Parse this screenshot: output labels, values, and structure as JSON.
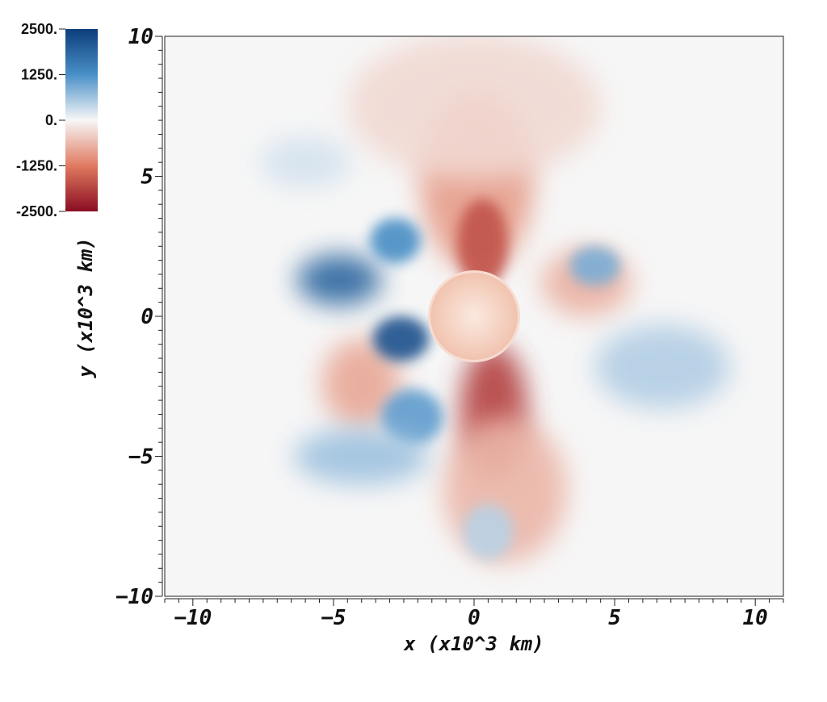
{
  "chart_data": {
    "type": "heatmap",
    "xlabel": "x (x10^3 km)",
    "ylabel": "y (x10^3 km)",
    "xlim": [
      -11,
      11
    ],
    "ylim": [
      -10,
      10
    ],
    "x_ticks": [
      -10,
      -5,
      0,
      5,
      10
    ],
    "x_tick_labels": [
      "−10",
      "−5",
      "0",
      "5",
      "10"
    ],
    "y_ticks": [
      10,
      5,
      0,
      -5,
      -10
    ],
    "y_tick_labels": [
      "10",
      "5",
      "0",
      "−5",
      "−10"
    ],
    "colorbar": {
      "range": [
        -2500,
        2500
      ],
      "ticks": [
        2500,
        1250,
        0,
        -1250,
        -2500
      ],
      "tick_labels": [
        "2500.",
        "1250.",
        "0.",
        "-1250.",
        "-2500."
      ],
      "colors": {
        "max": "#0b3d7a",
        "high": "#4a90c8",
        "mid": "#f7f7f7",
        "low": "#e07a60",
        "min": "#8a0d22"
      }
    },
    "central_object": {
      "x": 0,
      "y": 0,
      "radius": 1.6,
      "color": "#f4cfc0"
    },
    "features": [
      {
        "kind": "blob",
        "sign": "negative",
        "x": 0.1,
        "y": 4.8,
        "rx": 2.0,
        "ry": 3.2,
        "value": -900
      },
      {
        "kind": "blob",
        "sign": "negative",
        "x": 0.3,
        "y": 2.6,
        "rx": 0.9,
        "ry": 1.6,
        "value": -1700
      },
      {
        "kind": "blob",
        "sign": "negative",
        "x": 0.7,
        "y": -3.4,
        "rx": 1.2,
        "ry": 2.4,
        "value": -1900
      },
      {
        "kind": "blob",
        "sign": "negative",
        "x": 1.1,
        "y": -6.2,
        "rx": 2.2,
        "ry": 2.6,
        "value": -650
      },
      {
        "kind": "blob",
        "sign": "negative",
        "x": -4.0,
        "y": -2.4,
        "rx": 1.4,
        "ry": 1.6,
        "value": -800
      },
      {
        "kind": "blob",
        "sign": "negative",
        "x": 4.0,
        "y": 1.2,
        "rx": 1.6,
        "ry": 1.2,
        "value": -700
      },
      {
        "kind": "blob",
        "sign": "negative",
        "x": 0.0,
        "y": 7.5,
        "rx": 4.5,
        "ry": 2.6,
        "value": -300
      },
      {
        "kind": "blob",
        "sign": "positive",
        "x": -4.8,
        "y": 1.3,
        "rx": 1.5,
        "ry": 0.9,
        "value": 1900
      },
      {
        "kind": "blob",
        "sign": "positive",
        "x": -2.6,
        "y": -0.8,
        "rx": 1.0,
        "ry": 0.8,
        "value": 2200
      },
      {
        "kind": "blob",
        "sign": "positive",
        "x": -2.8,
        "y": 2.7,
        "rx": 0.9,
        "ry": 0.8,
        "value": 1300
      },
      {
        "kind": "blob",
        "sign": "positive",
        "x": -2.2,
        "y": -3.6,
        "rx": 1.1,
        "ry": 1.0,
        "value": 1100
      },
      {
        "kind": "blob",
        "sign": "positive",
        "x": -4.0,
        "y": -5.0,
        "rx": 2.4,
        "ry": 1.0,
        "value": 650
      },
      {
        "kind": "blob",
        "sign": "positive",
        "x": 4.3,
        "y": 1.8,
        "rx": 0.9,
        "ry": 0.7,
        "value": 900
      },
      {
        "kind": "blob",
        "sign": "positive",
        "x": 6.7,
        "y": -1.8,
        "rx": 2.4,
        "ry": 1.5,
        "value": 500
      },
      {
        "kind": "blob",
        "sign": "positive",
        "x": 0.5,
        "y": -7.7,
        "rx": 0.9,
        "ry": 1.0,
        "value": 450
      },
      {
        "kind": "blob",
        "sign": "positive",
        "x": -6.0,
        "y": 5.5,
        "rx": 1.6,
        "ry": 0.9,
        "value": 250
      }
    ]
  }
}
